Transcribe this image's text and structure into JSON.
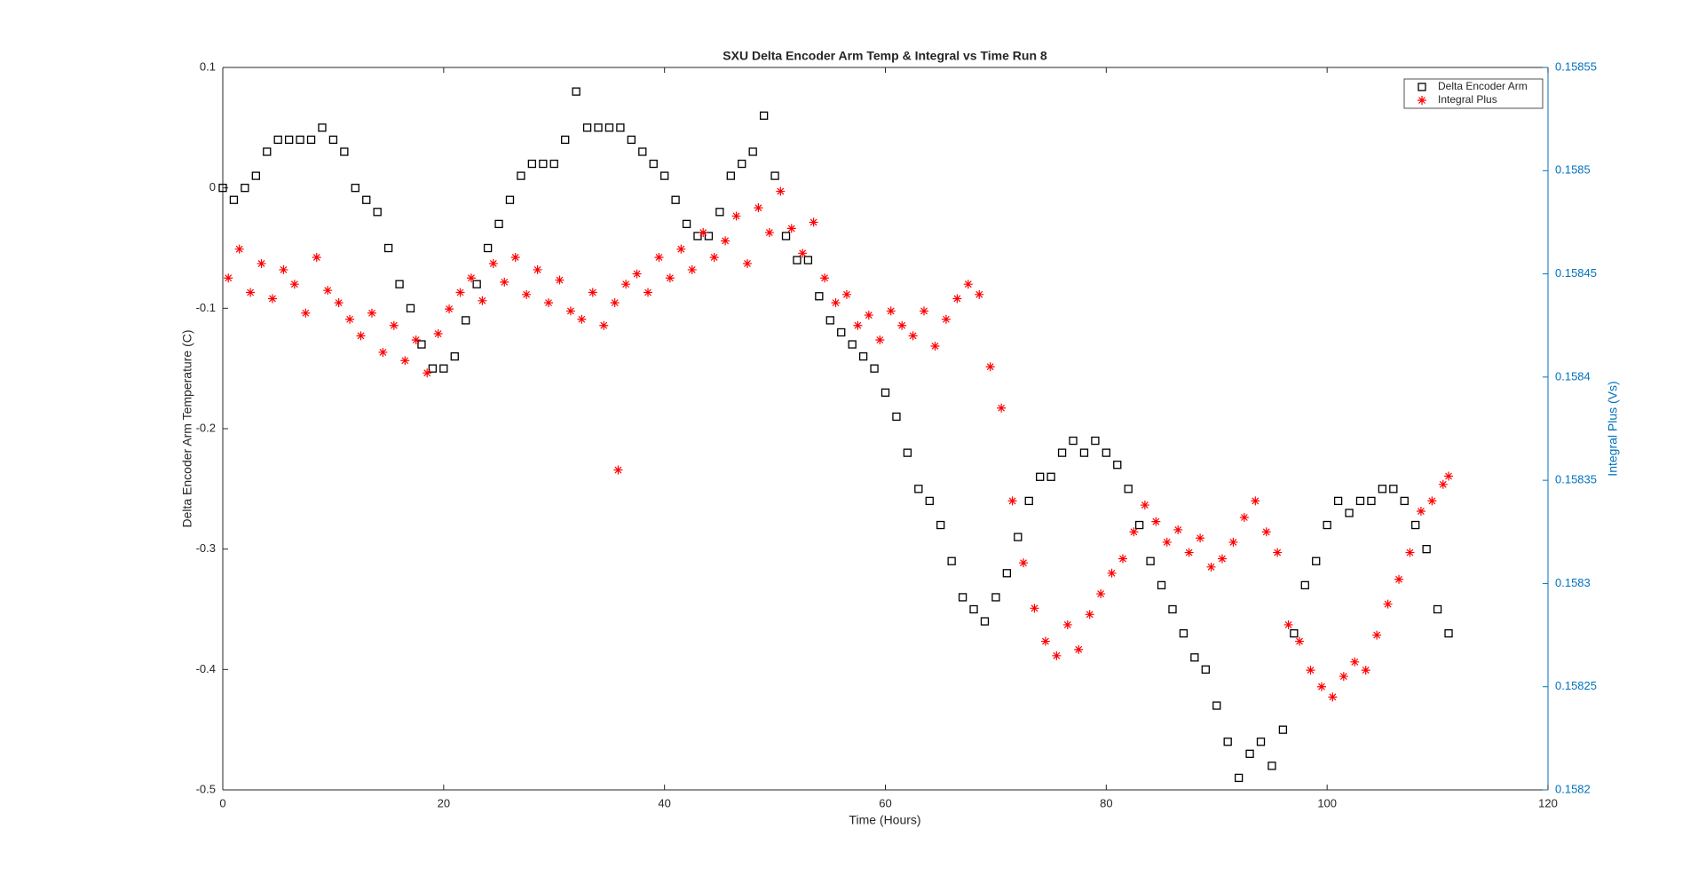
{
  "chart_data": {
    "type": "scatter",
    "title": "SXU Delta Encoder Arm Temp & Integral vs Time Run 8",
    "x_label": "Time (Hours)",
    "y_label": "Delta Encoder Arm Temperature (C)",
    "y2_label": "Integral Plus (Vs)",
    "xlim": [
      0,
      120
    ],
    "xticks": [
      0,
      20,
      40,
      60,
      80,
      100,
      120
    ],
    "ylim": [
      -0.5,
      0.1
    ],
    "yticks": [
      -0.5,
      -0.4,
      -0.3,
      -0.2,
      -0.1,
      0,
      0.1
    ],
    "y2lim": [
      0.1582,
      0.15855
    ],
    "y2ticks": [
      0.1582,
      0.15825,
      0.1583,
      0.15835,
      0.1584,
      0.15845,
      0.1585,
      0.15855
    ],
    "y2color": "#0072bd",
    "legend": "upper right",
    "series": [
      {
        "name": "Delta Encoder Arm",
        "color": "#000000",
        "marker": "square",
        "x": [
          0,
          1,
          2,
          3,
          4,
          5,
          6,
          7,
          8,
          9,
          10,
          11,
          12,
          13,
          14,
          15,
          16,
          17,
          18,
          19,
          20,
          21,
          22,
          23,
          24,
          25,
          26,
          27,
          28,
          29,
          30,
          31,
          32,
          33,
          34,
          35,
          36,
          37,
          38,
          39,
          40,
          41,
          42,
          43,
          44,
          45,
          46,
          47,
          48,
          49,
          50,
          51,
          52,
          53,
          54,
          55,
          56,
          57,
          58,
          59,
          60,
          61,
          62,
          63,
          64,
          65,
          66,
          67,
          68,
          69,
          70,
          71,
          72,
          73,
          74,
          75,
          76,
          77,
          78,
          79,
          80,
          81,
          82,
          83,
          84,
          85,
          86,
          87,
          88,
          89,
          90,
          91,
          92,
          93,
          94,
          95,
          96,
          97,
          98,
          99,
          100,
          101,
          102,
          103,
          104,
          105,
          106,
          107,
          108,
          109,
          110,
          111
        ],
        "values": [
          0,
          -0.01,
          0,
          0.01,
          0.03,
          0.04,
          0.04,
          0.04,
          0.04,
          0.05,
          0.04,
          0.03,
          0,
          -0.01,
          -0.02,
          -0.05,
          -0.08,
          -0.1,
          -0.13,
          -0.15,
          -0.15,
          -0.14,
          -0.11,
          -0.08,
          -0.05,
          -0.03,
          -0.01,
          0.01,
          0.02,
          0.02,
          0.02,
          0.04,
          0.08,
          0.05,
          0.05,
          0.05,
          0.05,
          0.04,
          0.03,
          0.02,
          0.01,
          -0.01,
          -0.03,
          -0.04,
          -0.04,
          -0.02,
          0.01,
          0.02,
          0.03,
          0.06,
          0.01,
          -0.04,
          -0.06,
          -0.06,
          -0.09,
          -0.11,
          -0.12,
          -0.13,
          -0.14,
          -0.15,
          -0.17,
          -0.19,
          -0.22,
          -0.25,
          -0.26,
          -0.28,
          -0.31,
          -0.34,
          -0.35,
          -0.36,
          -0.34,
          -0.32,
          -0.29,
          -0.26,
          -0.24,
          -0.24,
          -0.22,
          -0.21,
          -0.22,
          -0.21,
          -0.22,
          -0.23,
          -0.25,
          -0.28,
          -0.31,
          -0.33,
          -0.35,
          -0.37,
          -0.39,
          -0.4,
          -0.43,
          -0.46,
          -0.49,
          -0.47,
          -0.46,
          -0.48,
          -0.45,
          -0.37,
          -0.33,
          -0.31,
          -0.28,
          -0.26,
          -0.27,
          -0.26,
          -0.26,
          -0.25,
          -0.25,
          -0.26,
          -0.28,
          -0.3,
          -0.35,
          -0.37
        ]
      },
      {
        "name": "Integral Plus",
        "color": "#ff0000",
        "marker": "star",
        "axis": "y2",
        "x": [
          0.5,
          1.5,
          2.5,
          3.5,
          4.5,
          5.5,
          6.5,
          7.5,
          8.5,
          9.5,
          10.5,
          11.5,
          12.5,
          13.5,
          14.5,
          15.5,
          16.5,
          17.5,
          18.5,
          19.5,
          20.5,
          21.5,
          22.5,
          23.5,
          24.5,
          25.5,
          26.5,
          27.5,
          28.5,
          29.5,
          30.5,
          31.5,
          32.5,
          33.5,
          34.5,
          35.5,
          35.8,
          36.5,
          37.5,
          38.5,
          39.5,
          40.5,
          41.5,
          42.5,
          43.5,
          44.5,
          45.5,
          46.5,
          47.5,
          48.5,
          49.5,
          50.5,
          51.5,
          52.5,
          53.5,
          54.5,
          55.5,
          56.5,
          57.5,
          58.5,
          59.5,
          60.5,
          61.5,
          62.5,
          63.5,
          64.5,
          65.5,
          66.5,
          67.5,
          68.5,
          69.5,
          70.5,
          71.5,
          72.5,
          73.5,
          74.5,
          75.5,
          76.5,
          77.5,
          78.5,
          79.5,
          80.5,
          81.5,
          82.5,
          83.5,
          84.5,
          85.5,
          86.5,
          87.5,
          88.5,
          89.5,
          90.5,
          91.5,
          92.5,
          93.5,
          94.5,
          95.5,
          96.5,
          97.5,
          98.5,
          99.5,
          100.5,
          101.5,
          102.5,
          103.5,
          104.5,
          105.5,
          106.5,
          107.5,
          108.5,
          109.5,
          110.5,
          111
        ],
        "values": [
          0.158448,
          0.158462,
          0.158441,
          0.158455,
          0.158438,
          0.158452,
          0.158445,
          0.158431,
          0.158458,
          0.158442,
          0.158436,
          0.158428,
          0.15842,
          0.158431,
          0.158412,
          0.158425,
          0.158408,
          0.158418,
          0.158402,
          0.158421,
          0.158433,
          0.158441,
          0.158448,
          0.158437,
          0.158455,
          0.158446,
          0.158458,
          0.15844,
          0.158452,
          0.158436,
          0.158447,
          0.158432,
          0.158428,
          0.158441,
          0.158425,
          0.158436,
          0.158355,
          0.158445,
          0.15845,
          0.158441,
          0.158458,
          0.158448,
          0.158462,
          0.158452,
          0.15847,
          0.158458,
          0.158466,
          0.158478,
          0.158455,
          0.158482,
          0.15847,
          0.15849,
          0.158472,
          0.15846,
          0.158475,
          0.158448,
          0.158436,
          0.15844,
          0.158425,
          0.15843,
          0.158418,
          0.158432,
          0.158425,
          0.15842,
          0.158432,
          0.158415,
          0.158428,
          0.158438,
          0.158445,
          0.15844,
          0.158405,
          0.158385,
          0.15834,
          0.15831,
          0.158288,
          0.158272,
          0.158265,
          0.15828,
          0.158268,
          0.158285,
          0.158295,
          0.158305,
          0.158312,
          0.158325,
          0.158338,
          0.15833,
          0.15832,
          0.158326,
          0.158315,
          0.158322,
          0.158308,
          0.158312,
          0.15832,
          0.158332,
          0.15834,
          0.158325,
          0.158315,
          0.15828,
          0.158272,
          0.158258,
          0.15825,
          0.158245,
          0.158255,
          0.158262,
          0.158258,
          0.158275,
          0.15829,
          0.158302,
          0.158315,
          0.158335,
          0.15834,
          0.158348,
          0.158352
        ]
      }
    ]
  }
}
